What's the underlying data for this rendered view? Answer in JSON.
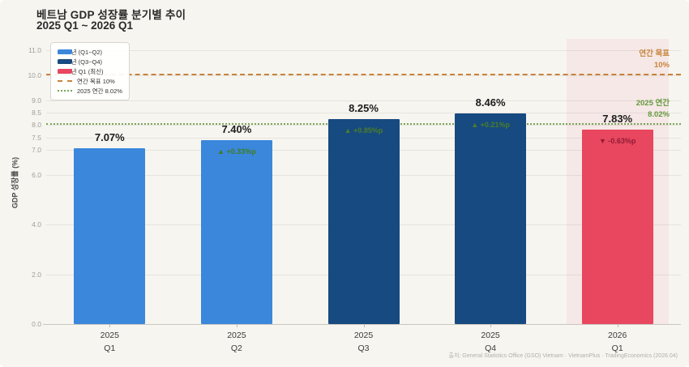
{
  "chart_data": {
    "type": "bar",
    "title": "베트남 GDP 성장률 분기별 추이",
    "subtitle": "2025 Q1 ~ 2026 Q1",
    "ylabel": "GDP 성장률 (%)",
    "ylim": [
      0,
      11.4
    ],
    "grid": true,
    "yticks": [
      0,
      2,
      4,
      6,
      7,
      7.5,
      8,
      8.5,
      9,
      10,
      11
    ],
    "ytick_labels": [
      "0.0",
      "2.0",
      "4.0",
      "6.0",
      "7.0",
      "7.5",
      "8.0",
      "8.5",
      "9.0",
      "10.0",
      "11.0"
    ],
    "categories": [
      [
        "2025",
        "Q1"
      ],
      [
        "2025",
        "Q2"
      ],
      [
        "2025",
        "Q3"
      ],
      [
        "2025",
        "Q4"
      ],
      [
        "2026",
        "Q1"
      ]
    ],
    "values": [
      7.07,
      7.4,
      8.25,
      8.46,
      7.83
    ],
    "value_labels": [
      "7.07%",
      "7.40%",
      "8.25%",
      "8.46%",
      "7.83%"
    ],
    "deltas": [
      null,
      "▲ +0.33%p",
      "▲ +0.85%p",
      "▲ +0.21%p",
      "▼ -0.63%p"
    ],
    "delta_colors": [
      null,
      "#3f7d23",
      "#4c7d28",
      "#4c7d28",
      "#8f1d33"
    ],
    "bar_colors": [
      "#3a87dc",
      "#3a87dc",
      "#174a80",
      "#174a80",
      "#e9465f"
    ],
    "highlight_index": 4,
    "reference_lines": [
      {
        "value": 10,
        "style": "dashed",
        "color": "#c8843c",
        "label": [
          "연간 목표",
          "10%"
        ],
        "label_color": "#c8843c"
      },
      {
        "value": 8.02,
        "style": "dotted",
        "color": "#7aa457",
        "label": [
          "2025 연간",
          "8.02%"
        ],
        "label_color": "#649a3f"
      }
    ],
    "legend": [
      {
        "type": "bar",
        "color": "#3a87dc",
        "label": "2025년 (Q1~Q2)"
      },
      {
        "type": "bar",
        "color": "#174a80",
        "label": "2025년 (Q3~Q4)"
      },
      {
        "type": "bar",
        "color": "#e9465f",
        "label": "2026년 Q1 (최신)"
      },
      {
        "type": "dashed",
        "color": "#c8843c",
        "label": "연간 목표 10%"
      },
      {
        "type": "dotted",
        "color": "#7aa457",
        "label": "2025 연간 8.02%"
      }
    ],
    "source": "출처: General Statistics Office (GSO) Vietnam · VietnamPlus · TradingEconomics (2026.04)"
  }
}
